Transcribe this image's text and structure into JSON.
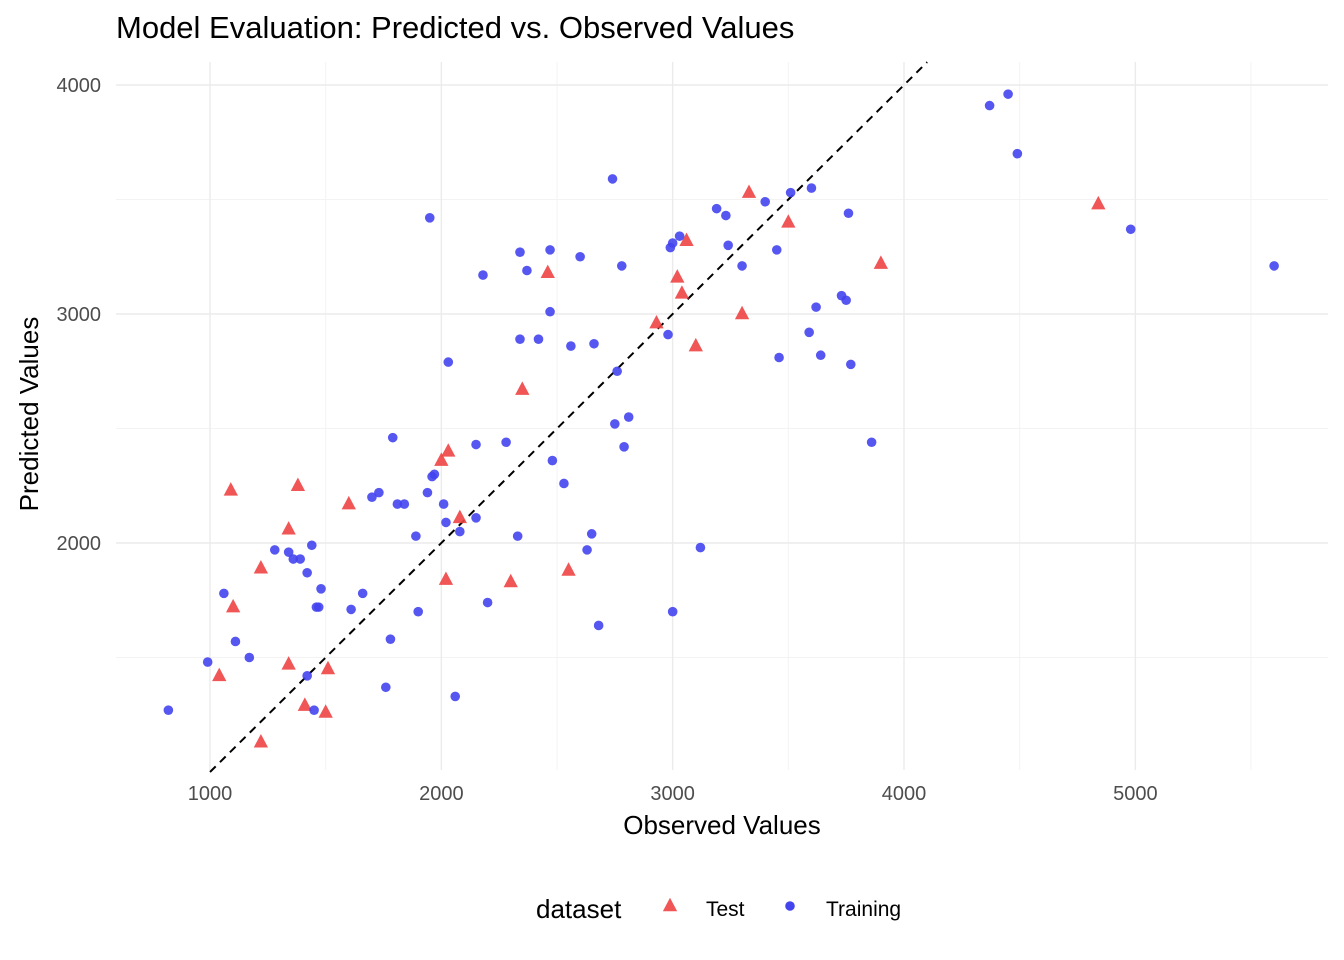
{
  "chart_data": {
    "type": "scatter",
    "title": "Model Evaluation: Predicted vs. Observed Values",
    "xlabel": "Observed Values",
    "ylabel": "Predicted Values",
    "xlim": [
      600,
      5850
    ],
    "ylim": [
      1000,
      4100
    ],
    "x_ticks": [
      1000,
      2000,
      3000,
      4000,
      5000
    ],
    "y_ticks": [
      2000,
      3000,
      4000
    ],
    "grid": true,
    "reference_line": {
      "type": "identity",
      "style": "dashed",
      "color": "#000000"
    },
    "legend": {
      "title": "dataset",
      "placement": "bottom",
      "entries": [
        {
          "label": "Test",
          "color": "#ee4444",
          "shape": "triangle"
        },
        {
          "label": "Training",
          "color": "#4444ee",
          "shape": "circle"
        }
      ]
    },
    "series": [
      {
        "name": "Test",
        "shape": "triangle",
        "color": "#ee4444",
        "points": [
          [
            1090,
            2230
          ],
          [
            1100,
            1720
          ],
          [
            1040,
            1420
          ],
          [
            1220,
            1890
          ],
          [
            1220,
            1130
          ],
          [
            1340,
            2060
          ],
          [
            1340,
            1470
          ],
          [
            1380,
            2250
          ],
          [
            1410,
            1290
          ],
          [
            1500,
            1260
          ],
          [
            1510,
            1450
          ],
          [
            1600,
            2170
          ],
          [
            2000,
            2360
          ],
          [
            2030,
            2400
          ],
          [
            2020,
            1840
          ],
          [
            2080,
            2110
          ],
          [
            2300,
            1830
          ],
          [
            2350,
            2670
          ],
          [
            2460,
            3180
          ],
          [
            2550,
            1880
          ],
          [
            2930,
            2960
          ],
          [
            3020,
            3160
          ],
          [
            3040,
            3090
          ],
          [
            3060,
            3320
          ],
          [
            3100,
            2860
          ],
          [
            3300,
            3000
          ],
          [
            3330,
            3530
          ],
          [
            3500,
            3400
          ],
          [
            3900,
            3220
          ],
          [
            4840,
            3480
          ]
        ]
      },
      {
        "name": "Training",
        "shape": "circle",
        "color": "#4444ee",
        "points": [
          [
            820,
            1270
          ],
          [
            990,
            1480
          ],
          [
            1060,
            1780
          ],
          [
            1110,
            1570
          ],
          [
            1170,
            1500
          ],
          [
            1280,
            1970
          ],
          [
            1340,
            1960
          ],
          [
            1360,
            1930
          ],
          [
            1390,
            1930
          ],
          [
            1420,
            1870
          ],
          [
            1420,
            1420
          ],
          [
            1440,
            1990
          ],
          [
            1450,
            1270
          ],
          [
            1460,
            1720
          ],
          [
            1470,
            1720
          ],
          [
            1480,
            1800
          ],
          [
            1610,
            1710
          ],
          [
            1660,
            1780
          ],
          [
            1700,
            2200
          ],
          [
            1730,
            2220
          ],
          [
            1760,
            1370
          ],
          [
            1780,
            1580
          ],
          [
            1790,
            2460
          ],
          [
            1810,
            2170
          ],
          [
            1840,
            2170
          ],
          [
            1890,
            2030
          ],
          [
            1900,
            1700
          ],
          [
            1940,
            2220
          ],
          [
            1950,
            3420
          ],
          [
            1960,
            2290
          ],
          [
            1970,
            2300
          ],
          [
            2010,
            2170
          ],
          [
            2020,
            2090
          ],
          [
            2030,
            2790
          ],
          [
            2060,
            1330
          ],
          [
            2080,
            2050
          ],
          [
            2150,
            2110
          ],
          [
            2150,
            2430
          ],
          [
            2180,
            3170
          ],
          [
            2200,
            1740
          ],
          [
            2280,
            2440
          ],
          [
            2330,
            2030
          ],
          [
            2340,
            3270
          ],
          [
            2340,
            2890
          ],
          [
            2370,
            3190
          ],
          [
            2420,
            2890
          ],
          [
            2470,
            3010
          ],
          [
            2470,
            3280
          ],
          [
            2480,
            2360
          ],
          [
            2530,
            2260
          ],
          [
            2560,
            2860
          ],
          [
            2600,
            3250
          ],
          [
            2630,
            1970
          ],
          [
            2650,
            2040
          ],
          [
            2660,
            2870
          ],
          [
            2680,
            1640
          ],
          [
            2740,
            3590
          ],
          [
            2750,
            2520
          ],
          [
            2760,
            2750
          ],
          [
            2780,
            3210
          ],
          [
            2790,
            2420
          ],
          [
            2810,
            2550
          ],
          [
            2980,
            2910
          ],
          [
            2990,
            3290
          ],
          [
            3000,
            3310
          ],
          [
            3000,
            1700
          ],
          [
            3030,
            3340
          ],
          [
            3120,
            1980
          ],
          [
            3190,
            3460
          ],
          [
            3230,
            3430
          ],
          [
            3240,
            3300
          ],
          [
            3300,
            3210
          ],
          [
            3400,
            3490
          ],
          [
            3450,
            3280
          ],
          [
            3460,
            2810
          ],
          [
            3510,
            3530
          ],
          [
            3590,
            2920
          ],
          [
            3600,
            3550
          ],
          [
            3620,
            3030
          ],
          [
            3640,
            2820
          ],
          [
            3730,
            3080
          ],
          [
            3750,
            3060
          ],
          [
            3760,
            3440
          ],
          [
            3770,
            2780
          ],
          [
            3860,
            2440
          ],
          [
            4370,
            3910
          ],
          [
            4450,
            3960
          ],
          [
            4490,
            3700
          ],
          [
            4980,
            3370
          ],
          [
            5600,
            3210
          ]
        ]
      }
    ]
  }
}
